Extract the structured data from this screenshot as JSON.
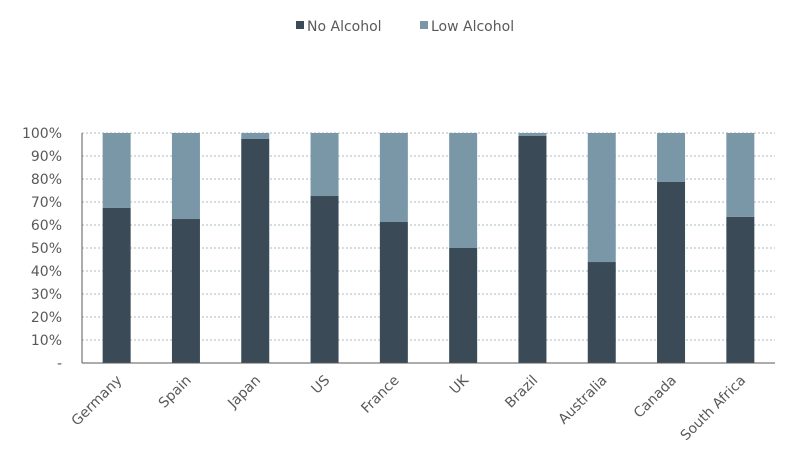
{
  "chart_data": {
    "type": "bar",
    "stacked": true,
    "title": "",
    "xlabel": "",
    "ylabel": "",
    "ylim": [
      0,
      100
    ],
    "y_ticks": [
      "-",
      "10%",
      "20%",
      "30%",
      "40%",
      "50%",
      "60%",
      "70%",
      "80%",
      "90%",
      "100%"
    ],
    "grid": true,
    "legend_position": "top-center",
    "categories": [
      "Germany",
      "Spain",
      "Japan",
      "US",
      "France",
      "UK",
      "Brazil",
      "Australia",
      "Canada",
      "South Africa"
    ],
    "series": [
      {
        "name": "No Alcohol",
        "color": "#3a4a57",
        "values": [
          67.4,
          62.6,
          97.4,
          72.6,
          61.3,
          50.0,
          98.7,
          43.9,
          78.7,
          63.5
        ]
      },
      {
        "name": "Low Alcohol",
        "color": "#7a97a8",
        "values": [
          32.6,
          37.4,
          2.6,
          27.4,
          38.7,
          50.0,
          1.3,
          56.1,
          21.3,
          36.5
        ]
      }
    ]
  }
}
